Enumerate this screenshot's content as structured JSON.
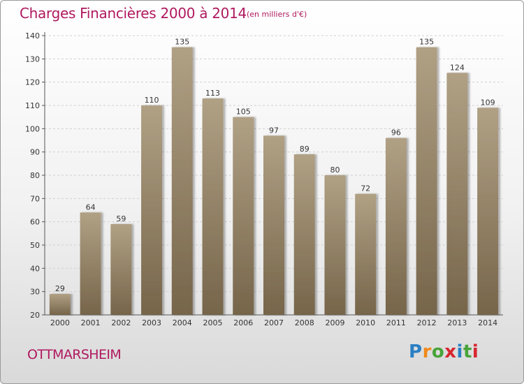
{
  "header": {
    "title": "Charges Financières 2000 à 2014",
    "subtitle": "(en milliers d'€)"
  },
  "footer": {
    "city": "OTTMARSHEIM",
    "logo": {
      "letters": [
        "P",
        "r",
        "o",
        "x",
        "i",
        "t",
        "i"
      ],
      "colors": [
        "#2b7fc4",
        "#f08a1c",
        "#48a33a",
        "#d8262f",
        "#2b7fc4",
        "#48a33a",
        "#d8262f"
      ]
    }
  },
  "colors": {
    "bar_top": "#b0a084",
    "bar_bottom": "#76654a",
    "title": "#b0195f"
  },
  "chart_data": {
    "type": "bar",
    "title": "Charges Financières 2000 à 2014",
    "subtitle": "(en milliers d'€)",
    "xlabel": "",
    "ylabel": "",
    "categories": [
      "2000",
      "2001",
      "2002",
      "2003",
      "2004",
      "2005",
      "2006",
      "2007",
      "2008",
      "2009",
      "2010",
      "2011",
      "2012",
      "2013",
      "2014"
    ],
    "values": [
      29,
      64,
      59,
      110,
      135,
      113,
      105,
      97,
      89,
      80,
      72,
      96,
      135,
      124,
      109
    ],
    "ylim": [
      20,
      140
    ],
    "yticks": [
      20,
      30,
      40,
      50,
      60,
      70,
      80,
      90,
      100,
      110,
      120,
      130,
      140
    ],
    "grid": true,
    "legend": "none"
  }
}
